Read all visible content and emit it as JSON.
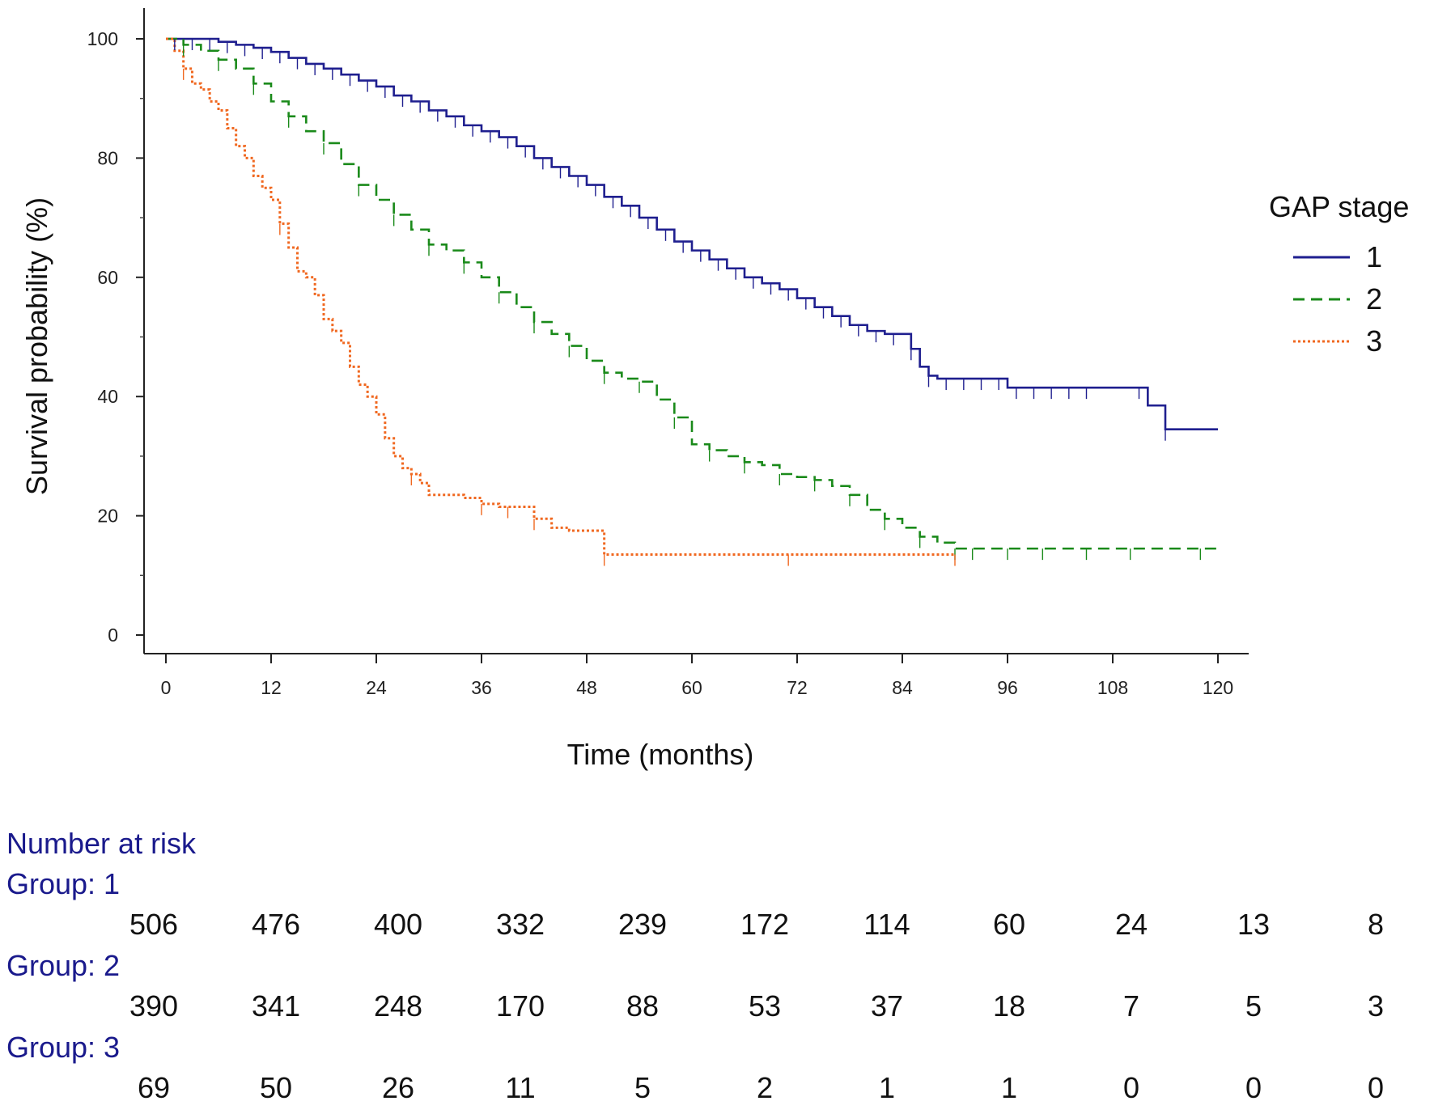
{
  "chart_data": {
    "type": "line",
    "subtype": "kaplan-meier",
    "title": "",
    "xlabel": "Time (months)",
    "ylabel": "Survival probability (%)",
    "xlim": [
      0,
      120
    ],
    "ylim": [
      0,
      100
    ],
    "xticks": [
      0,
      12,
      24,
      36,
      48,
      60,
      72,
      84,
      96,
      108,
      120
    ],
    "yticks": [
      0,
      20,
      40,
      60,
      80,
      100
    ],
    "grid": false,
    "legend": {
      "title": "GAP stage",
      "position": "right"
    },
    "series": [
      {
        "name": "1",
        "color": "#1f1f8f",
        "style": "solid",
        "x": [
          0,
          2,
          6,
          8,
          10,
          12,
          14,
          16,
          18,
          20,
          22,
          24,
          26,
          28,
          30,
          32,
          34,
          36,
          38,
          40,
          42,
          44,
          46,
          48,
          50,
          52,
          54,
          56,
          58,
          60,
          62,
          64,
          66,
          68,
          70,
          72,
          74,
          76,
          78,
          80,
          82,
          84,
          85,
          86,
          87,
          88,
          90,
          92,
          94,
          96,
          100,
          104,
          108,
          110,
          111,
          112,
          113,
          114,
          116,
          118,
          120
        ],
        "y": [
          100,
          100,
          99.5,
          99,
          98.5,
          97.8,
          96.8,
          95.8,
          95,
          94,
          93,
          92,
          90.5,
          89.5,
          88,
          87,
          85.5,
          84.5,
          83.5,
          82,
          80,
          78.5,
          77,
          75.5,
          73.5,
          72,
          70,
          68,
          66,
          64.5,
          63,
          61.5,
          60,
          59,
          58,
          56.5,
          55,
          53.5,
          52,
          51,
          50.5,
          50.5,
          48,
          45,
          43.5,
          43,
          43,
          43,
          43,
          41.5,
          41.5,
          41.5,
          41.5,
          41.5,
          41.5,
          38.5,
          38.5,
          34.5,
          34.5,
          34.5,
          34.5
        ]
      },
      {
        "name": "2",
        "color": "#1a8a1a",
        "style": "dashed",
        "x": [
          0,
          2,
          4,
          6,
          8,
          10,
          12,
          14,
          16,
          18,
          20,
          22,
          24,
          26,
          28,
          30,
          32,
          34,
          36,
          38,
          40,
          42,
          44,
          46,
          48,
          50,
          52,
          54,
          56,
          58,
          60,
          62,
          64,
          66,
          68,
          70,
          72,
          74,
          76,
          78,
          80,
          82,
          84,
          86,
          88,
          90,
          95,
          100,
          105,
          110,
          115,
          120
        ],
        "y": [
          100,
          99,
          98,
          96.5,
          95,
          92.5,
          89.5,
          87,
          84.5,
          82.5,
          79,
          75.5,
          73,
          70.5,
          68,
          65.5,
          64.5,
          62.5,
          60,
          57.5,
          55,
          52.5,
          50.5,
          48.5,
          46,
          44,
          43,
          42.5,
          39.5,
          36.5,
          32,
          31,
          30,
          29,
          28.5,
          27,
          26.5,
          26,
          25,
          23.5,
          21,
          19.5,
          18,
          16.5,
          15.5,
          14.5,
          14.5,
          14.5,
          14.5,
          14.5,
          14.5,
          14.5
        ]
      },
      {
        "name": "3",
        "color": "#f06820",
        "style": "dotted",
        "x": [
          0,
          1,
          2,
          3,
          4,
          5,
          6,
          7,
          8,
          9,
          10,
          11,
          12,
          13,
          14,
          15,
          16,
          17,
          18,
          19,
          20,
          21,
          22,
          23,
          24,
          25,
          26,
          27,
          28,
          29,
          30,
          32,
          34,
          36,
          38,
          40,
          42,
          44,
          46,
          48,
          50,
          55,
          60,
          70,
          80,
          90
        ],
        "y": [
          100,
          98,
          95,
          92.5,
          91.5,
          89.5,
          88,
          85,
          82,
          80,
          77,
          75,
          73,
          69,
          65,
          61,
          60,
          57,
          53,
          51,
          49,
          45,
          42,
          40,
          37,
          33,
          30,
          28,
          27,
          25.5,
          23.5,
          23.5,
          23,
          22,
          21.5,
          21.5,
          19.5,
          18,
          17.5,
          17.5,
          13.5,
          13.5,
          13.5,
          13.5,
          13.5,
          13.5
        ]
      }
    ],
    "number_at_risk": {
      "title": "Number at risk",
      "times": [
        0,
        12,
        24,
        36,
        48,
        60,
        72,
        84,
        96,
        108,
        120
      ],
      "groups": [
        {
          "label": "Group: 1",
          "values": [
            506,
            476,
            400,
            332,
            239,
            172,
            114,
            60,
            24,
            13,
            8
          ]
        },
        {
          "label": "Group: 2",
          "values": [
            390,
            341,
            248,
            170,
            88,
            53,
            37,
            18,
            7,
            5,
            3
          ]
        },
        {
          "label": "Group: 3",
          "values": [
            69,
            50,
            26,
            11,
            5,
            2,
            1,
            1,
            0,
            0,
            0
          ]
        }
      ]
    },
    "censor_marks": {
      "1": [
        1,
        3,
        5,
        7,
        9,
        11,
        13,
        15,
        17,
        19,
        21,
        23,
        25,
        27,
        29,
        31,
        33,
        35,
        37,
        39,
        41,
        43,
        45,
        47,
        49,
        51,
        53,
        55,
        57,
        59,
        61,
        63,
        65,
        67,
        69,
        71,
        73,
        75,
        77,
        79,
        81,
        83,
        85,
        87,
        89,
        91,
        93,
        95,
        97,
        99,
        101,
        103,
        105,
        111,
        114
      ],
      "2": [
        2,
        6,
        10,
        14,
        18,
        22,
        26,
        30,
        34,
        38,
        42,
        46,
        50,
        54,
        58,
        62,
        66,
        70,
        74,
        78,
        82,
        86,
        90,
        92,
        96,
        100,
        105,
        110,
        118
      ],
      "3": [
        2,
        13,
        28,
        36,
        39,
        42,
        50,
        71,
        90
      ]
    }
  }
}
